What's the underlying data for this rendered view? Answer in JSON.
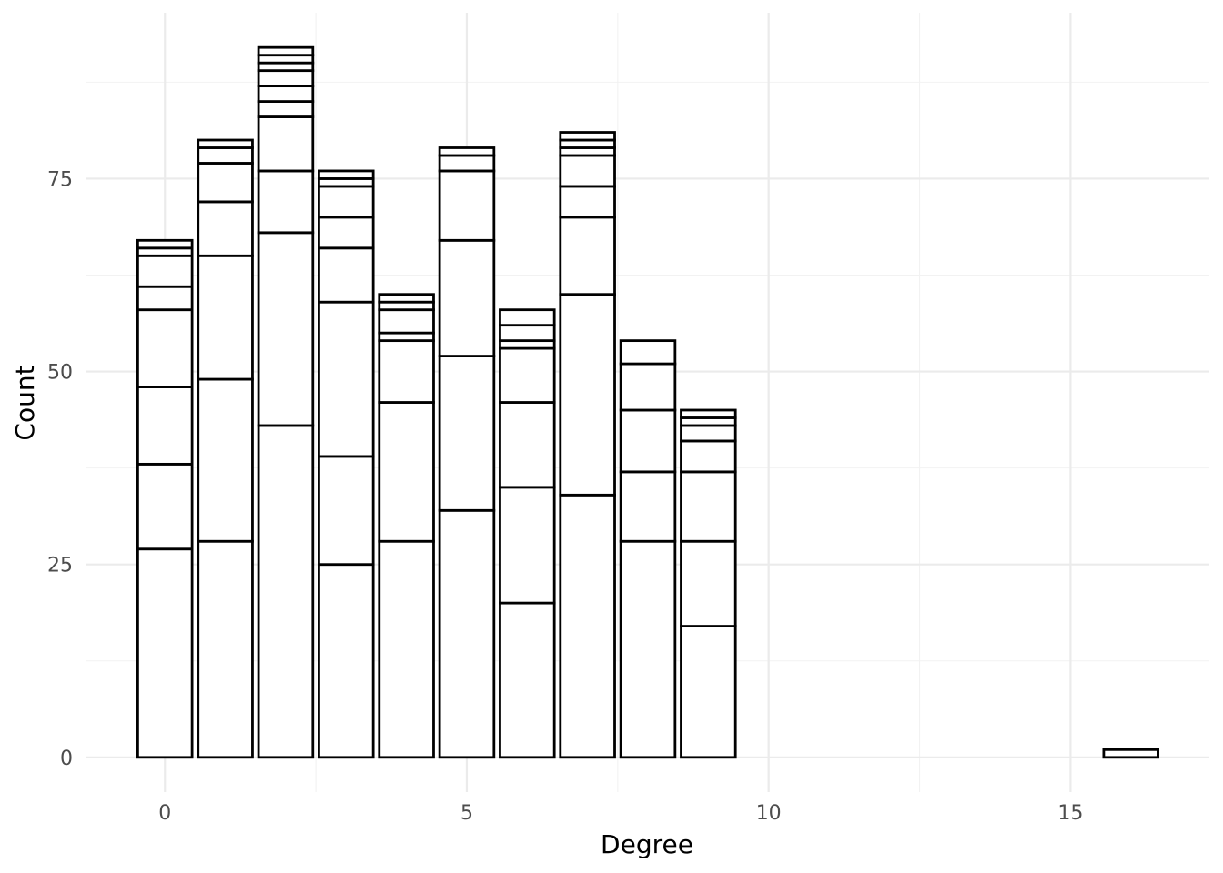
{
  "chart_data": {
    "type": "bar",
    "subtype": "stacked histogram",
    "title": "",
    "xlabel": "Degree",
    "ylabel": "Count",
    "xlim": [
      -1.3,
      17.3
    ],
    "ylim": [
      -4.5,
      96.5
    ],
    "x_ticks": [
      0,
      5,
      10,
      15
    ],
    "x_tick_labels": [
      "0",
      "5",
      "10",
      "15"
    ],
    "y_ticks": [
      0,
      25,
      50,
      75
    ],
    "y_tick_labels": [
      "0",
      "25",
      "50",
      "75"
    ],
    "grid": true,
    "legend": "none",
    "fill_color": "#ffffff",
    "outline_color": "#000000",
    "bins": [
      {
        "x": 0,
        "total": 67,
        "boundaries": [
          27,
          38,
          48,
          58,
          61,
          65,
          66
        ]
      },
      {
        "x": 1,
        "total": 80,
        "boundaries": [
          28,
          49,
          65,
          72,
          77,
          79
        ]
      },
      {
        "x": 2,
        "total": 92,
        "boundaries": [
          43,
          68,
          76,
          83,
          85,
          87,
          89,
          90,
          91
        ]
      },
      {
        "x": 3,
        "total": 76,
        "boundaries": [
          25,
          39,
          59,
          66,
          70,
          74,
          75
        ]
      },
      {
        "x": 4,
        "total": 60,
        "boundaries": [
          28,
          46,
          54,
          55,
          58,
          59
        ]
      },
      {
        "x": 5,
        "total": 79,
        "boundaries": [
          32,
          52,
          67,
          76,
          78
        ]
      },
      {
        "x": 6,
        "total": 58,
        "boundaries": [
          20,
          35,
          46,
          53,
          54,
          56
        ]
      },
      {
        "x": 7,
        "total": 81,
        "boundaries": [
          34,
          60,
          70,
          74,
          78,
          79,
          80
        ]
      },
      {
        "x": 8,
        "total": 54,
        "boundaries": [
          28,
          37,
          45,
          51
        ]
      },
      {
        "x": 9,
        "total": 45,
        "boundaries": [
          17,
          28,
          37,
          41,
          43,
          44
        ]
      },
      {
        "x": 16,
        "total": 1,
        "boundaries": []
      }
    ]
  }
}
